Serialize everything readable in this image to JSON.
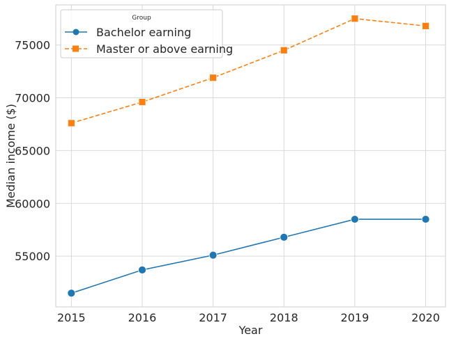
{
  "chart_data": {
    "type": "line",
    "title": "",
    "xlabel": "Year",
    "ylabel": "Median income ($)",
    "x": [
      2015,
      2016,
      2017,
      2018,
      2019,
      2020
    ],
    "xlim": [
      2014.78,
      2020.28
    ],
    "ylim": [
      50200,
      78800
    ],
    "yticks": [
      55000,
      60000,
      65000,
      70000,
      75000
    ],
    "grid": true,
    "legend": {
      "title": "Group",
      "placement": "top-left"
    },
    "series": [
      {
        "name": "Bachelor earning",
        "values": [
          51500,
          53700,
          55100,
          56800,
          58500,
          58500
        ],
        "color": "#1f77b4",
        "marker": "circle",
        "linestyle": "solid"
      },
      {
        "name": "Master or above earning",
        "values": [
          67600,
          69600,
          71900,
          74500,
          77500,
          76800
        ],
        "color": "#ff7f0e",
        "marker": "square",
        "linestyle": "dashed"
      }
    ]
  }
}
